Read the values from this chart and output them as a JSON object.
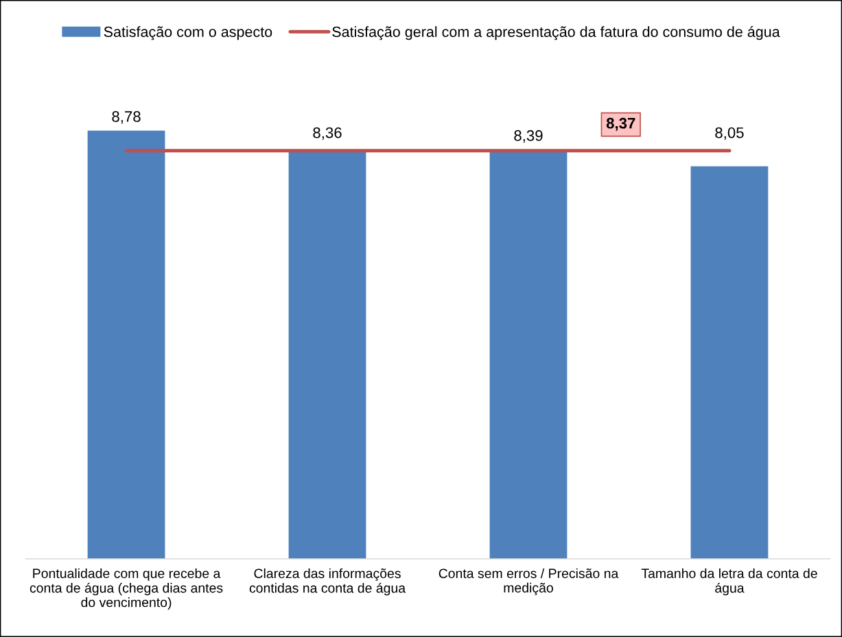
{
  "chart_data": {
    "type": "bar",
    "categories": [
      "Pontualidade com que recebe a conta de água (chega dias antes do vencimento)",
      "Clareza das informações contidas na conta de água",
      "Conta sem erros / Precisão na medição",
      "Tamanho da letra da conta de água"
    ],
    "series": [
      {
        "name": "Satisfação com o aspecto",
        "color": "#4f81bd",
        "values": [
          8.78,
          8.36,
          8.39,
          8.05
        ],
        "value_labels": [
          "8,78",
          "8,36",
          "8,39",
          "8,05"
        ]
      },
      {
        "name": "Satisfação geral com a apresentação da fatura do consumo de água",
        "type": "line",
        "color": "#c0504d",
        "values": [
          8.37,
          8.37,
          8.37,
          8.37
        ]
      }
    ],
    "annotations": [
      {
        "text": "8,37",
        "y": 8.37
      }
    ],
    "legend": "top"
  }
}
